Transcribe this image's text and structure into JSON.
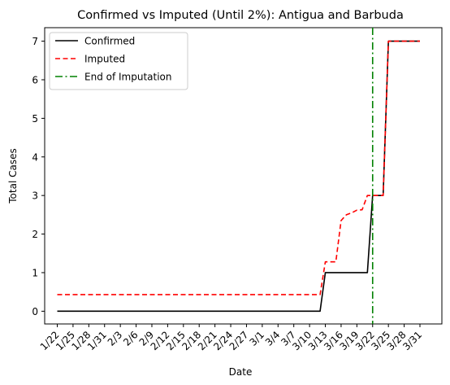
{
  "chart_data": {
    "type": "line",
    "title": "Confirmed vs Imputed (Until 2%): Antigua and Barbuda",
    "xlabel": "Date",
    "ylabel": "Total Cases",
    "x_start": "1/22",
    "x_end": "3/31",
    "xticks": [
      "1/22",
      "1/25",
      "1/28",
      "1/31",
      "2/3",
      "2/6",
      "2/9",
      "2/12",
      "2/15",
      "2/18",
      "2/21",
      "2/24",
      "2/27",
      "3/1",
      "3/4",
      "3/7",
      "3/10",
      "3/13",
      "3/16",
      "3/19",
      "3/22",
      "3/25",
      "3/28",
      "3/31"
    ],
    "yticks": [
      "0",
      "1",
      "2",
      "3",
      "4",
      "5",
      "6",
      "7"
    ],
    "ylim": [
      -0.33,
      7.35
    ],
    "grid": false,
    "legend_position": "top-left",
    "series": [
      {
        "name": "Confirmed",
        "color": "#000000",
        "style": "solid",
        "points": [
          [
            "1/22",
            0
          ],
          [
            "3/12",
            0
          ],
          [
            "3/13",
            1
          ],
          [
            "3/20",
            1
          ],
          [
            "3/21",
            1
          ],
          [
            "3/22",
            3
          ],
          [
            "3/24",
            3
          ],
          [
            "3/25",
            7
          ],
          [
            "3/31",
            7
          ]
        ]
      },
      {
        "name": "Imputed",
        "color": "#ff0000",
        "style": "dashed",
        "points": [
          [
            "1/22",
            0.43
          ],
          [
            "3/12",
            0.43
          ],
          [
            "3/13",
            1.28
          ],
          [
            "3/15",
            1.28
          ],
          [
            "3/16",
            2.35
          ],
          [
            "3/17",
            2.5
          ],
          [
            "3/18",
            2.55
          ],
          [
            "3/19",
            2.62
          ],
          [
            "3/20",
            2.63
          ],
          [
            "3/21",
            3.0
          ],
          [
            "3/22",
            3
          ],
          [
            "3/24",
            3
          ],
          [
            "3/25",
            7
          ],
          [
            "3/31",
            7
          ]
        ]
      }
    ],
    "vlines": [
      {
        "name": "End of Imputation",
        "x": "3/22",
        "color": "#008000",
        "style": "dashdot"
      }
    ]
  }
}
